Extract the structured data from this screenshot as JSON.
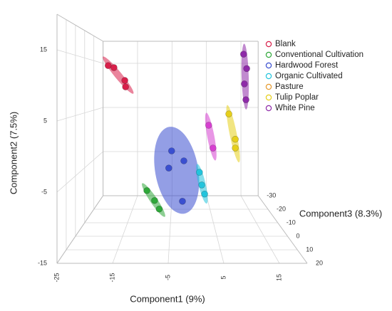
{
  "chart_data": {
    "type": "scatter3d",
    "xlabel": "Component1 (9%)",
    "ylabel": "Component2 (7.5%)",
    "zlabel": "Component3 (8.3%)",
    "xlim": [
      -25,
      20
    ],
    "xticks": [
      -25,
      -15,
      -5,
      5,
      15
    ],
    "ylim": [
      -15,
      20
    ],
    "yticks": [
      -15,
      -5,
      5,
      15
    ],
    "zlim": [
      -30,
      20
    ],
    "zticks": [
      -30,
      -20,
      -10,
      0,
      10,
      20
    ],
    "grid": true,
    "legend": "upper right",
    "series": [
      {
        "name": "Blank",
        "color": "#d81f4a",
        "x": [
          -21.3,
          -19.8,
          -17.0,
          -16.8
        ],
        "values": [
          14.0,
          13.6,
          11.0,
          9.7
        ],
        "z": [
          -20,
          -20,
          -20,
          -20
        ]
      },
      {
        "name": "Conventional Cultivation",
        "color": "#2fa83a",
        "x": [
          -9.3,
          -7.8,
          -6.9
        ],
        "values": [
          -6.0,
          -7.5,
          -8.8
        ],
        "z": [
          10,
          10,
          10
        ]
      },
      {
        "name": "Hardwood Forest",
        "color": "#3a4fd0",
        "x": [
          -4.6,
          -5.2,
          -2.0,
          -2.3
        ],
        "values": [
          -0.85,
          -3.7,
          -2.5,
          -9.2
        ],
        "z": [
          0,
          0,
          0,
          0
        ]
      },
      {
        "name": "Organic Cultivated",
        "color": "#22c4dc",
        "x": [
          1.3,
          1.8,
          2.4
        ],
        "values": [
          -4.4,
          -6.5,
          -8.0
        ],
        "z": [
          0,
          0,
          0
        ]
      },
      {
        "name": "Pasture",
        "color": "#e69a2e",
        "marker_color": "#d63fd0",
        "x": [
          3.9,
          4.9
        ],
        "values": [
          2.75,
          -1.4
        ],
        "z": [
          -10,
          -10
        ]
      },
      {
        "name": "Tulip Poplar",
        "color": "#e6cf1a",
        "x": [
          8.6,
          10.1,
          10.1
        ],
        "values": [
          4.8,
          0.2,
          -1.4
        ],
        "z": [
          -10,
          -10,
          -10
        ]
      },
      {
        "name": "White Pine",
        "color": "#8e2aa8",
        "x": [
          13.7,
          14.5,
          13.9,
          14.3
        ],
        "values": [
          16.3,
          13.4,
          10.3,
          7.1
        ],
        "z": [
          -20,
          -20,
          -20,
          -20
        ]
      }
    ]
  }
}
